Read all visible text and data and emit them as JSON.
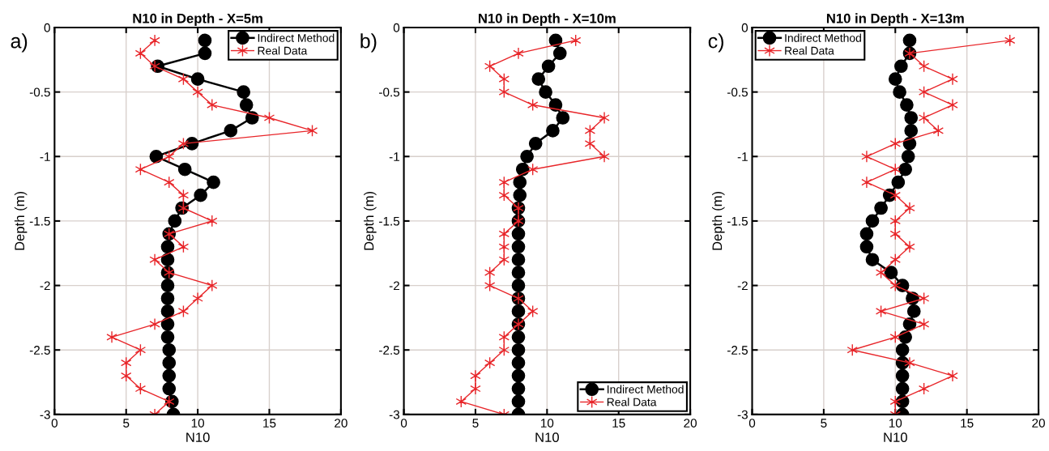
{
  "chart_data": [
    {
      "type": "line",
      "title": "N10 in Depth - X=5m",
      "xlabel": "N10",
      "ylabel": "Depth (m)",
      "annotations": [
        "a)"
      ],
      "xlim": [
        0,
        20
      ],
      "ylim": [
        -3,
        0
      ],
      "xticks": [
        0,
        5,
        10,
        15,
        20
      ],
      "yticks": [
        0,
        -0.5,
        -1,
        -1.5,
        -2,
        -2.5,
        -3
      ],
      "grid": true,
      "legend": "top right",
      "series": [
        {
          "name": "Indirect Method",
          "color": "#000000",
          "marker": "circle",
          "x": [
            10.5,
            10.5,
            7.2,
            10.0,
            13.2,
            13.4,
            13.8,
            12.3,
            9.6,
            7.1,
            9.1,
            11.1,
            10.2,
            8.9,
            8.4,
            8.0,
            7.9,
            7.9,
            7.9,
            7.9,
            7.9,
            7.9,
            7.9,
            7.9,
            8.0,
            8.0,
            8.0,
            8.0,
            8.2,
            8.3
          ],
          "values": [
            -0.1,
            -0.2,
            -0.3,
            -0.4,
            -0.5,
            -0.6,
            -0.7,
            -0.8,
            -0.9,
            -1.0,
            -1.1,
            -1.2,
            -1.3,
            -1.4,
            -1.5,
            -1.6,
            -1.7,
            -1.8,
            -1.9,
            -2.0,
            -2.1,
            -2.2,
            -2.3,
            -2.4,
            -2.5,
            -2.6,
            -2.7,
            -2.8,
            -2.9,
            -3.0
          ]
        },
        {
          "name": "Real Data",
          "color": "#e8262a",
          "marker": "cross",
          "x": [
            7,
            6,
            7,
            9,
            10,
            11,
            15,
            18,
            9,
            8,
            6,
            8,
            9,
            9,
            11,
            8,
            9,
            7,
            8,
            11,
            10,
            9,
            7,
            4,
            6,
            5,
            5,
            6,
            8,
            7
          ],
          "values": [
            -0.1,
            -0.2,
            -0.3,
            -0.4,
            -0.5,
            -0.6,
            -0.7,
            -0.8,
            -0.9,
            -1.0,
            -1.1,
            -1.2,
            -1.3,
            -1.4,
            -1.5,
            -1.6,
            -1.7,
            -1.8,
            -1.9,
            -2.0,
            -2.1,
            -2.2,
            -2.3,
            -2.4,
            -2.5,
            -2.6,
            -2.7,
            -2.8,
            -2.9,
            -3.0
          ]
        }
      ]
    },
    {
      "type": "line",
      "title": "N10 in Depth - X=10m",
      "xlabel": "N10",
      "ylabel": "Depth (m)",
      "annotations": [
        "b)"
      ],
      "xlim": [
        0,
        20
      ],
      "ylim": [
        -3,
        0
      ],
      "xticks": [
        0,
        5,
        10,
        15,
        20
      ],
      "yticks": [
        0,
        -0.5,
        -1,
        -1.5,
        -2,
        -2.5,
        -3
      ],
      "grid": true,
      "legend": "bottom right",
      "series": [
        {
          "name": "Indirect Method",
          "color": "#000000",
          "marker": "circle",
          "x": [
            10.6,
            10.9,
            10.1,
            9.4,
            9.9,
            10.6,
            11.1,
            10.4,
            9.2,
            8.6,
            8.3,
            8.1,
            8.1,
            8.0,
            8.0,
            8.0,
            8.0,
            8.0,
            8.0,
            8.0,
            8.0,
            8.0,
            8.0,
            8.0,
            8.0,
            8.0,
            8.0,
            8.0,
            8.0,
            8.0
          ],
          "values": [
            -0.1,
            -0.2,
            -0.3,
            -0.4,
            -0.5,
            -0.6,
            -0.7,
            -0.8,
            -0.9,
            -1.0,
            -1.1,
            -1.2,
            -1.3,
            -1.4,
            -1.5,
            -1.6,
            -1.7,
            -1.8,
            -1.9,
            -2.0,
            -2.1,
            -2.2,
            -2.3,
            -2.4,
            -2.5,
            -2.6,
            -2.7,
            -2.8,
            -2.9,
            -3.0
          ]
        },
        {
          "name": "Real Data",
          "color": "#e8262a",
          "marker": "cross",
          "x": [
            12,
            8,
            6,
            7,
            7,
            9,
            14,
            13,
            13,
            14,
            9,
            7,
            7,
            8,
            8,
            7,
            7,
            7,
            6,
            6,
            8,
            9,
            8,
            7,
            7,
            6,
            5,
            5,
            4,
            7
          ],
          "values": [
            -0.1,
            -0.2,
            -0.3,
            -0.4,
            -0.5,
            -0.6,
            -0.7,
            -0.8,
            -0.9,
            -1.0,
            -1.1,
            -1.2,
            -1.3,
            -1.4,
            -1.5,
            -1.6,
            -1.7,
            -1.8,
            -1.9,
            -2.0,
            -2.1,
            -2.2,
            -2.3,
            -2.4,
            -2.5,
            -2.6,
            -2.7,
            -2.8,
            -2.9,
            -3.0
          ]
        }
      ]
    },
    {
      "type": "line",
      "title": "N10 in Depth - X=13m",
      "xlabel": "N10",
      "ylabel": "Depth (m)",
      "annotations": [
        "c)"
      ],
      "xlim": [
        0,
        20
      ],
      "ylim": [
        -3,
        0
      ],
      "xticks": [
        0,
        5,
        10,
        15,
        20
      ],
      "yticks": [
        0,
        -0.5,
        -1,
        -1.5,
        -2,
        -2.5,
        -3
      ],
      "grid": true,
      "legend": "top left",
      "series": [
        {
          "name": "Indirect Method",
          "color": "#000000",
          "marker": "circle",
          "x": [
            11.0,
            11.0,
            10.4,
            10.0,
            10.3,
            10.8,
            11.1,
            11.1,
            11.0,
            10.9,
            10.7,
            10.2,
            9.6,
            9.0,
            8.4,
            8.0,
            8.0,
            8.4,
            9.7,
            10.5,
            11.2,
            11.3,
            11.0,
            10.7,
            10.5,
            10.5,
            10.5,
            10.5,
            10.5,
            10.5
          ],
          "values": [
            -0.1,
            -0.2,
            -0.3,
            -0.4,
            -0.5,
            -0.6,
            -0.7,
            -0.8,
            -0.9,
            -1.0,
            -1.1,
            -1.2,
            -1.3,
            -1.4,
            -1.5,
            -1.6,
            -1.7,
            -1.8,
            -1.9,
            -2.0,
            -2.1,
            -2.2,
            -2.3,
            -2.4,
            -2.5,
            -2.6,
            -2.7,
            -2.8,
            -2.9,
            -3.0
          ]
        },
        {
          "name": "Real Data",
          "color": "#e8262a",
          "marker": "cross",
          "x": [
            18,
            11,
            12,
            14,
            12,
            14,
            12,
            13,
            10,
            8,
            10,
            8,
            10,
            11,
            10,
            10,
            11,
            10,
            9,
            10,
            12,
            9,
            12,
            10,
            7,
            11,
            14,
            12,
            10,
            10
          ],
          "values": [
            -0.1,
            -0.2,
            -0.3,
            -0.4,
            -0.5,
            -0.6,
            -0.7,
            -0.8,
            -0.9,
            -1.0,
            -1.1,
            -1.2,
            -1.3,
            -1.4,
            -1.5,
            -1.6,
            -1.7,
            -1.8,
            -1.9,
            -2.0,
            -2.1,
            -2.2,
            -2.3,
            -2.4,
            -2.5,
            -2.6,
            -2.7,
            -2.8,
            -2.9,
            -3.0
          ]
        }
      ]
    }
  ]
}
